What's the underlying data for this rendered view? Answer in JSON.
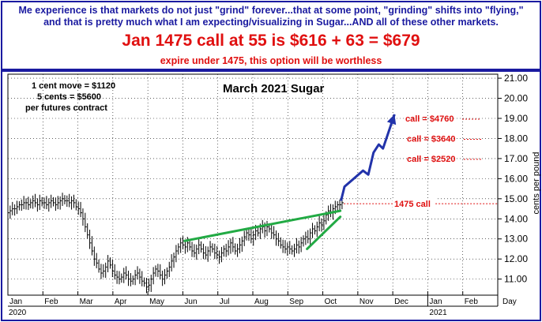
{
  "header": {
    "line1": "Me experience is that markets do not just \"grind\" forever...that at some point, \"grinding\" shifts into \"flying,\"",
    "line2": "and that is pretty much what I am expecting/visualizing in Sugar...AND all of these other markets.",
    "headline": "Jan 1475 call at 55 is $616 + 63 = $679",
    "subline": "expire under 1475, this option will be worthless"
  },
  "colors": {
    "header_blue": "#1a1aa0",
    "header_red": "#e01010",
    "trend_green": "#22aa44",
    "arrow_blue": "#2233aa",
    "call_red": "#e01010"
  },
  "chart_data": {
    "type": "bar",
    "title": "March 2021 Sugar",
    "ylabel": "cents per pound",
    "ylim": [
      10.2,
      21.2
    ],
    "y_ticks": [
      "11.00",
      "12.00",
      "13.00",
      "14.00",
      "15.00",
      "16.00",
      "17.00",
      "18.00",
      "19.00",
      "20.00",
      "21.00"
    ],
    "x_ticks": [
      "Jan",
      "Feb",
      "Mar",
      "Apr",
      "May",
      "Jun",
      "Jul",
      "Aug",
      "Sep",
      "Oct",
      "Nov",
      "Dec",
      "Jan",
      "Feb"
    ],
    "x_extra_label": "Day",
    "year_labels": [
      "2020",
      "2021"
    ],
    "info_lines": [
      "1 cent move = $1120",
      "5 cents = $5600",
      "per futures contract"
    ],
    "strike": {
      "label": "1475 call",
      "value": 14.75
    },
    "call_targets": [
      {
        "label": "call = $4760",
        "value": 19.0
      },
      {
        "label": "call = $3640",
        "value": 18.0
      },
      {
        "label": "call = $2520",
        "value": 17.0
      }
    ],
    "closes": [
      14.3,
      14.4,
      14.5,
      14.5,
      14.6,
      14.7,
      14.7,
      14.8,
      14.8,
      14.7,
      14.8,
      14.9,
      14.8,
      14.7,
      14.9,
      14.8,
      14.8,
      14.7,
      14.8,
      14.9,
      14.8,
      14.7,
      14.8,
      14.9,
      15.0,
      14.9,
      14.9,
      14.8,
      14.9,
      14.8,
      14.6,
      14.5,
      14.3,
      14.0,
      13.6,
      13.2,
      12.8,
      12.4,
      12.0,
      11.8,
      11.5,
      11.3,
      11.4,
      11.6,
      11.9,
      11.7,
      11.4,
      11.2,
      11.1,
      11.0,
      11.1,
      11.3,
      11.2,
      11.0,
      10.9,
      11.0,
      11.2,
      11.3,
      11.1,
      10.9,
      10.8,
      10.6,
      10.7,
      11.0,
      11.3,
      11.5,
      11.4,
      11.2,
      11.0,
      11.2,
      11.4,
      11.6,
      11.9,
      12.1,
      12.4,
      12.6,
      12.8,
      12.7,
      12.6,
      12.8,
      12.6,
      12.4,
      12.3,
      12.5,
      12.7,
      12.5,
      12.3,
      12.2,
      12.4,
      12.6,
      12.5,
      12.3,
      12.2,
      12.1,
      12.3,
      12.5,
      12.4,
      12.6,
      12.8,
      12.6,
      12.4,
      12.5,
      12.7,
      12.9,
      13.1,
      13.3,
      13.2,
      13.0,
      13.2,
      13.4,
      13.3,
      13.5,
      13.6,
      13.4,
      13.6,
      13.5,
      13.3,
      13.2,
      13.0,
      12.9,
      12.7,
      12.6,
      12.5,
      12.6,
      12.5,
      12.4,
      12.5,
      12.7,
      12.6,
      12.8,
      13.0,
      13.1,
      13.0,
      13.3,
      13.5,
      13.4,
      13.6,
      13.8,
      13.7,
      13.9,
      14.2,
      14.4,
      14.3,
      14.5,
      14.6,
      14.7,
      14.7,
      14.8
    ],
    "history_start": "Jan",
    "history_end": "Oct",
    "upper_trendline": {
      "from": [
        "Jun",
        12.9
      ],
      "to": [
        "Oct",
        14.4
      ]
    },
    "lower_trendline": {
      "from": [
        "Sep",
        12.5
      ],
      "to": [
        "Oct",
        14.1
      ]
    },
    "projection": [
      [
        "Oct",
        14.9
      ],
      [
        "Oct",
        15.6
      ],
      [
        "Nov",
        16.4
      ],
      [
        "Nov",
        16.2
      ],
      [
        "Nov",
        17.3
      ],
      [
        "Nov",
        17.7
      ],
      [
        "Nov",
        17.5
      ],
      [
        "Dec",
        19.2
      ]
    ]
  }
}
